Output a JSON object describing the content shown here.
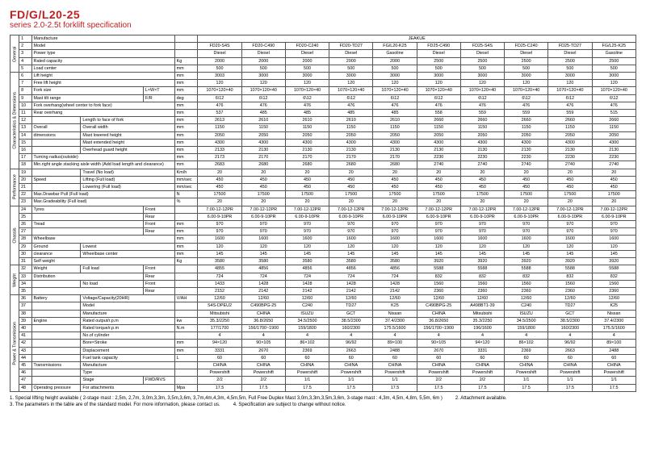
{
  "header": {
    "title": "FD/G/L20-25",
    "subtitle": "series 2.0-2.5t forklift specification",
    "title_color": "#c02020",
    "subtitle_color": "#c02020"
  },
  "models": [
    "FD20-S4S",
    "FD20-C490",
    "FD20-C240",
    "FD20-TD27",
    "FG/L20-K25",
    "FD25-C490",
    "FD25-S4S",
    "FD25-C240",
    "FD25-TD27",
    "FG/L25-K25"
  ],
  "groups": [
    {
      "name": "General",
      "rows": [
        {
          "i": "1",
          "a": "Manufacture",
          "b": "",
          "c": "",
          "u": "",
          "v": [
            "JEAKUE"
          ],
          "span": 10
        },
        {
          "i": "2",
          "a": "Model",
          "b": "",
          "c": "",
          "u": "",
          "v": [
            "FD20-S4S",
            "FD20-C490",
            "FD20-C240",
            "FD20-TD27",
            "FG/L20-K25",
            "FD25-C490",
            "FD25-S4S",
            "FD25-C240",
            "FD25-TD27",
            "FG/L25-K25"
          ]
        },
        {
          "i": "3",
          "a": "Power type",
          "b": "",
          "c": "",
          "u": "",
          "v": [
            "Diesel",
            "Diesel",
            "Diesel",
            "Diesel",
            "Gasoline",
            "Diesel",
            "Diesel",
            "Diesel",
            "Diesel",
            "Gasoline"
          ]
        },
        {
          "i": "4",
          "a": "Rated capacity",
          "b": "",
          "c": "",
          "u": "Kg",
          "v": [
            "2000",
            "2000",
            "2000",
            "2000",
            "2000",
            "2500",
            "2500",
            "2500",
            "2500",
            "2500"
          ]
        },
        {
          "i": "5",
          "a": "Load center",
          "b": "",
          "c": "",
          "u": "mm",
          "v": [
            "500",
            "500",
            "500",
            "500",
            "500",
            "500",
            "500",
            "500",
            "500",
            "500"
          ]
        }
      ]
    },
    {
      "name": "Characteristics & Dimensions",
      "rows": [
        {
          "i": "6",
          "a": "Lift height",
          "b": "",
          "c": "",
          "u": "mm",
          "v": [
            "3003",
            "3000",
            "3000",
            "3000",
            "3000",
            "3000",
            "3000",
            "3000",
            "3000",
            "3000"
          ]
        },
        {
          "i": "7",
          "a": "Free lift height",
          "b": "",
          "c": "",
          "u": "mm",
          "v": [
            "120",
            "120",
            "120",
            "120",
            "120",
            "120",
            "120",
            "120",
            "120",
            "120"
          ]
        },
        {
          "i": "8",
          "a": "Fork size",
          "b": "",
          "c": "L×W×T",
          "u": "mm",
          "v": [
            "1070×120×40",
            "1070×120×40",
            "1070×120×40",
            "1070×120×40",
            "1070×120×40",
            "1070×120×40",
            "1070×120×40",
            "1070×120×40",
            "1070×120×40",
            "1070×120×40"
          ]
        },
        {
          "i": "9",
          "a": "Mast tilt range",
          "b": "",
          "c": "F/R",
          "u": "deg",
          "v": [
            "6\\12",
            "6\\12",
            "6\\12",
            "6\\12",
            "6\\12",
            "6\\12",
            "6\\12",
            "6\\12",
            "6\\12",
            "6\\12"
          ]
        },
        {
          "i": "10",
          "a": "Fork overhang(wheel center to fork face)",
          "b": "",
          "c": "",
          "u": "mm",
          "v": [
            "476",
            "476",
            "476",
            "476",
            "476",
            "476",
            "476",
            "476",
            "476",
            "476"
          ]
        },
        {
          "i": "11",
          "a": "Rear overhang",
          "b": "",
          "c": "",
          "u": "mm",
          "v": [
            "537",
            "485",
            "485",
            "485",
            "485",
            "558",
            "559",
            "559",
            "559",
            "515"
          ]
        },
        {
          "i": "12",
          "a": "",
          "b": "Length to face of fork",
          "c": "",
          "u": "mm",
          "v": [
            "2613",
            "2610",
            "2610",
            "2610",
            "2610",
            "2660",
            "2660",
            "2660",
            "2660",
            "2660"
          ]
        },
        {
          "i": "13",
          "a": "Overall",
          "b": "Overall width",
          "c": "",
          "u": "mm",
          "v": [
            "1150",
            "1150",
            "1150",
            "1150",
            "1150",
            "1150",
            "1150",
            "1150",
            "1150",
            "1150"
          ]
        },
        {
          "i": "14",
          "a": "dimensions",
          "b": "Mast lowered height",
          "c": "",
          "u": "mm",
          "v": [
            "2050",
            "2050",
            "2050",
            "2050",
            "2050",
            "2050",
            "2050",
            "2050",
            "2050",
            "2050"
          ]
        },
        {
          "i": "15",
          "a": "",
          "b": "Mast extended height",
          "c": "",
          "u": "mm",
          "v": [
            "4300",
            "4300",
            "4300",
            "4300",
            "4300",
            "4300",
            "4300",
            "4300",
            "4300",
            "4300"
          ]
        },
        {
          "i": "16",
          "a": "",
          "b": "Overhead guard height",
          "c": "",
          "u": "mm",
          "v": [
            "2133",
            "2130",
            "2130",
            "2130",
            "2130",
            "2130",
            "2130",
            "2130",
            "2130",
            "2130"
          ]
        },
        {
          "i": "17",
          "a": "Turning radius(outside)",
          "b": "",
          "c": "",
          "u": "mm",
          "v": [
            "2173",
            "2170",
            "2170",
            "2170",
            "2170",
            "2230",
            "2230",
            "2230",
            "2230",
            "2230"
          ]
        },
        {
          "i": "18",
          "a": "Min.right angle stacking aisle width (Add load length and clearance)",
          "b": "",
          "c": "",
          "u": "mm",
          "v": [
            "2683",
            "2680",
            "2680",
            "2680",
            "2680",
            "2740",
            "2740",
            "2740",
            "2740",
            "2740"
          ]
        }
      ]
    },
    {
      "name": "Performance",
      "rows": [
        {
          "i": "19",
          "a": "",
          "b": "Travel (No load)",
          "c": "",
          "u": "Km/h",
          "v": [
            "20",
            "20",
            "20",
            "20",
            "20",
            "20",
            "20",
            "20",
            "20",
            "20"
          ]
        },
        {
          "i": "20",
          "a": "Speed",
          "b": "Lifting (Full load)",
          "c": "",
          "u": "mm/sec",
          "v": [
            "450",
            "450",
            "450",
            "450",
            "450",
            "450",
            "450",
            "450",
            "450",
            "450"
          ]
        },
        {
          "i": "21",
          "a": "",
          "b": "Lowering (Full load)",
          "c": "",
          "u": "mm/sec",
          "v": [
            "450",
            "450",
            "450",
            "450",
            "450",
            "450",
            "450",
            "450",
            "450",
            "450"
          ]
        },
        {
          "i": "22",
          "a": "Max.Drawbar Pull (Full load)",
          "b": "",
          "c": "",
          "u": "N",
          "v": [
            "17500",
            "17500",
            "17500",
            "17500",
            "17500",
            "17500",
            "17500",
            "17500",
            "17500",
            "17500"
          ]
        },
        {
          "i": "23",
          "a": "Max.Gradeability (Full load)",
          "b": "",
          "c": "",
          "u": "%",
          "v": [
            "20",
            "20",
            "20",
            "20",
            "20",
            "20",
            "20",
            "20",
            "20",
            "20"
          ]
        }
      ]
    },
    {
      "name": "Chassis",
      "rows": [
        {
          "i": "24",
          "a": "Tyres",
          "b": "",
          "c": "Front",
          "u": "",
          "v": [
            "7.00-12-12PR",
            "7.00-12-12PR",
            "7.00-12-12PR",
            "7.00-12-12PR",
            "7.00-12-12PR",
            "7.00-12-12PR",
            "7.00-12-12PR",
            "7.00-12-12PR",
            "7.00-12-12PR",
            "7.00-12-12PR"
          ]
        },
        {
          "i": "25",
          "a": "",
          "b": "",
          "c": "Rear",
          "u": "",
          "v": [
            "6.00-9-10PR",
            "6.00-9-10PR",
            "6.00-9-10PR",
            "6.00-9-10PR",
            "6.00-9-10PR",
            "6.00-9-10PR",
            "6.00-9-10PR",
            "6.00-9-10PR",
            "6.00-9-10PR",
            "6.00-9-10PR"
          ]
        },
        {
          "i": "26",
          "a": "Tread",
          "b": "",
          "c": "Front",
          "u": "mm",
          "v": [
            "970",
            "970",
            "970",
            "970",
            "970",
            "970",
            "970",
            "970",
            "970",
            "970"
          ]
        },
        {
          "i": "27",
          "a": "",
          "b": "",
          "c": "Rear",
          "u": "mm",
          "v": [
            "970",
            "970",
            "970",
            "970",
            "970",
            "970",
            "970",
            "970",
            "970",
            "970"
          ]
        },
        {
          "i": "28",
          "a": "Wheelbase",
          "b": "",
          "c": "",
          "u": "mm",
          "v": [
            "1600",
            "1600",
            "1600",
            "1600",
            "1600",
            "1600",
            "1600",
            "1600",
            "1600",
            "1600"
          ]
        },
        {
          "i": "29",
          "a": "Ground",
          "b": "Lowest",
          "c": "",
          "u": "mm",
          "v": [
            "120",
            "120",
            "120",
            "120",
            "120",
            "120",
            "120",
            "120",
            "120",
            "120"
          ]
        },
        {
          "i": "30",
          "a": "clearance",
          "b": "Wheelbase center",
          "c": "",
          "u": "mm",
          "v": [
            "145",
            "145",
            "145",
            "145",
            "145",
            "145",
            "145",
            "145",
            "145",
            "145"
          ]
        },
        {
          "i": "31",
          "a": "Self weight",
          "b": "",
          "c": "",
          "u": "Kg",
          "v": [
            "3580",
            "3580",
            "3580",
            "3580",
            "3580",
            "3920",
            "3920",
            "3920",
            "3920",
            "3920"
          ]
        }
      ]
    },
    {
      "name": "Weight",
      "rows": [
        {
          "i": "32",
          "a": "Weight",
          "b": "Full load",
          "c": "Front",
          "u": "",
          "v": [
            "4855",
            "4856",
            "4856",
            "4856",
            "4856",
            "5588",
            "5588",
            "5588",
            "5588",
            "5588"
          ]
        },
        {
          "i": "33",
          "a": "Distribution",
          "b": "",
          "c": "Rear",
          "u": "",
          "v": [
            "724",
            "724",
            "724",
            "724",
            "724",
            "832",
            "832",
            "832",
            "832",
            "832"
          ]
        },
        {
          "i": "34",
          "a": "",
          "b": "No load",
          "c": "Front",
          "u": "",
          "v": [
            "1433",
            "1428",
            "1428",
            "1428",
            "1428",
            "1560",
            "1560",
            "1560",
            "1560",
            "1560"
          ]
        },
        {
          "i": "35",
          "a": "",
          "b": "",
          "c": "Rear",
          "u": "",
          "v": [
            "2152",
            "2142",
            "2142",
            "2142",
            "2142",
            "2360",
            "2360",
            "2360",
            "2360",
            "2360"
          ]
        }
      ]
    },
    {
      "name": "Power & Transmission",
      "rows": [
        {
          "i": "36",
          "a": "Battery",
          "b": "Voltage/Capacity(20HR)",
          "c": "",
          "u": "V/AH",
          "v": [
            "12/60",
            "12/60",
            "12/60",
            "12/60",
            "12/60",
            "12/60",
            "12/60",
            "12/60",
            "12/60",
            "12/60"
          ]
        },
        {
          "i": "37",
          "a": "",
          "b": "Model",
          "c": "",
          "u": "",
          "v": [
            "S4S-DPEU2",
            "C490BPG-25",
            "C240",
            "TD27",
            "K25",
            "C490BPG-25",
            "A498BT1-39",
            "C240",
            "TD27",
            "K25"
          ]
        },
        {
          "i": "38",
          "a": "",
          "b": "Manufacture",
          "c": "",
          "u": "",
          "v": [
            "Mitsubishi",
            "CHINA",
            "ISUZU",
            "GCT",
            "Nissan",
            "CHINA",
            "Mitsubishi",
            "ISUZU",
            "GCT",
            "Nissan"
          ]
        },
        {
          "i": "39",
          "a": "Engine",
          "b": "Rated output/r.p.m",
          "c": "",
          "u": "kw",
          "v": [
            "35.3/2250",
            "36.8/2650",
            "34.5/2500",
            "38.5/2300",
            "37.4/2300",
            "36.8/2650",
            "35.3/2250",
            "34.5/2500",
            "38.5/2300",
            "37.4/2300"
          ]
        },
        {
          "i": "40",
          "a": "",
          "b": "Rated torque/r.p.m",
          "c": "",
          "u": "N.m",
          "v": [
            "177/1700",
            "156/1700~1900",
            "159/1800",
            "160/2300",
            "175.5/1600",
            "156/1700~1900",
            "196/1600",
            "159/1800",
            "160/2300",
            "175.5/1600"
          ]
        },
        {
          "i": "41",
          "a": "",
          "b": "No.of cylinder",
          "c": "",
          "u": "",
          "v": [
            "4",
            "4",
            "4",
            "4",
            "4",
            "4",
            "4",
            "4",
            "4",
            "4"
          ]
        },
        {
          "i": "42",
          "a": "",
          "b": "Bore×Stroke",
          "c": "",
          "u": "mm",
          "v": [
            "94×120",
            "90×105",
            "86×102",
            "96/92",
            "89×100",
            "90×105",
            "94×120",
            "86×102",
            "96/92",
            "89×100"
          ]
        },
        {
          "i": "43",
          "a": "",
          "b": "Displacement",
          "c": "",
          "u": "mm",
          "v": [
            "3331",
            "2670",
            "2369",
            "2663",
            "2488",
            "2670",
            "3331",
            "2369",
            "2663",
            "2488"
          ]
        },
        {
          "i": "44",
          "a": "",
          "b": "Fuel tank capacity",
          "c": "",
          "u": "L",
          "v": [
            "60",
            "60",
            "60",
            "60",
            "60",
            "60",
            "60",
            "60",
            "60",
            "60"
          ]
        },
        {
          "i": "45",
          "a": "Transmissions",
          "b": "Manufacture",
          "c": "",
          "u": "",
          "v": [
            "CHINA",
            "CHINA",
            "CHINA",
            "CHINA",
            "CHINA",
            "CHINA",
            "CHINA",
            "CHINA",
            "CHINA",
            "CHINA"
          ]
        },
        {
          "i": "46",
          "a": "",
          "b": "Type",
          "c": "",
          "u": "",
          "v": [
            "Powershift",
            "Powershift",
            "Powershift",
            "Powershift",
            "Powershift",
            "Powershift",
            "Powershift",
            "Powershift",
            "Powershift",
            "Powershift"
          ]
        },
        {
          "i": "47",
          "a": "",
          "b": "Stage",
          "c": "FWD/RVS",
          "u": "",
          "v": [
            "2/2",
            "2/2",
            "1/1",
            "1/1",
            "1/1",
            "2/2",
            "2/2",
            "1/1",
            "1/1",
            "1/1"
          ]
        },
        {
          "i": "48",
          "a": "Operating pressure",
          "b": "For attachments",
          "c": "",
          "u": "Mpa",
          "v": [
            "17.5",
            "17.5",
            "17.5",
            "17.5",
            "17.5",
            "17.5",
            "17.5",
            "17.5",
            "17.5",
            "17.5"
          ]
        }
      ]
    }
  ],
  "notes": [
    "1. Special lifting height available ( 2-stage mast : 2,5m, 2,7m, 3,0m,3,3m, 3,5m,3,6m, 3,7m,4m,4,3m, 4,5m,5m,  Full Free Duplex Mast 3,0m,3,3m,3,5m,3,6m, 3-stage mast : 4,3m, 4,5m, 4,8m, 5,5m, 6m )",
    "2. Attachment available.",
    "3. The parameters in the table are of the standard model. For more information, please contact us.",
    "4. Specification are subject to change without notice."
  ]
}
